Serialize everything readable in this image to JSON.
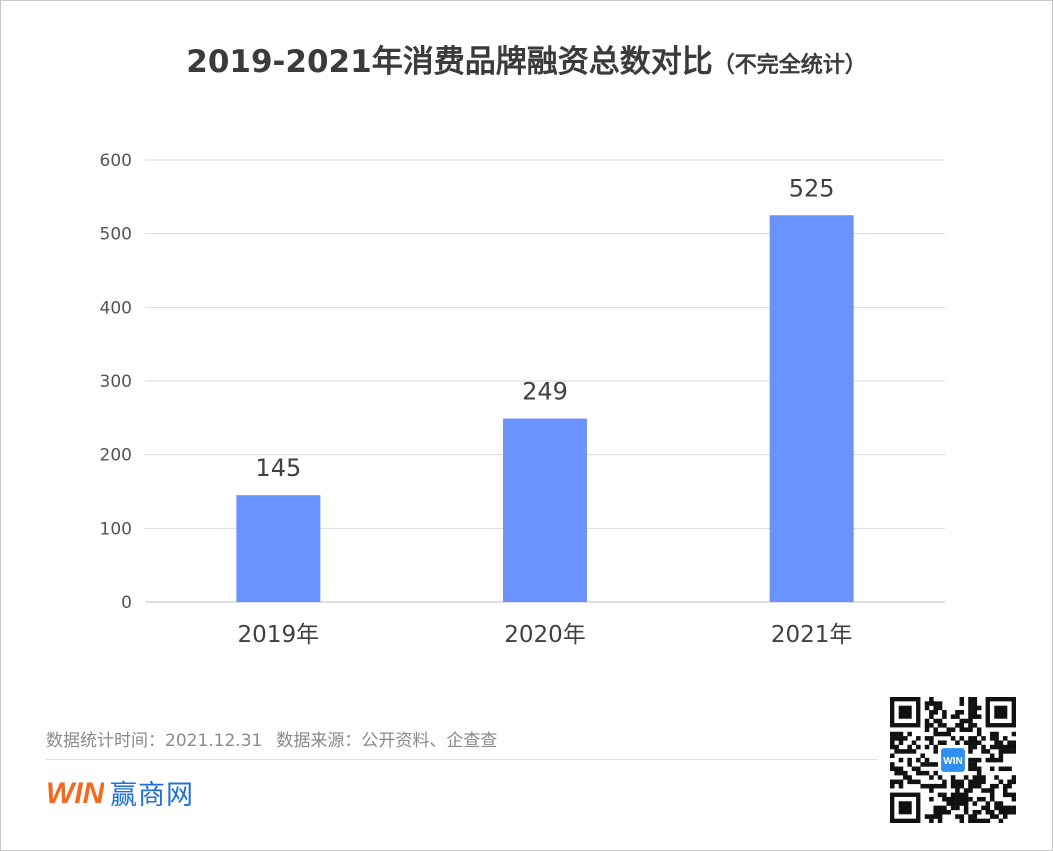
{
  "title": {
    "main": "2019-2021年消费品牌融资总数对比",
    "sub": "（不完全统计）"
  },
  "chart_data": {
    "type": "bar",
    "categories": [
      "2019年",
      "2020年",
      "2021年"
    ],
    "values": [
      145,
      249,
      525
    ],
    "ylim": [
      0,
      600
    ],
    "yticks": [
      0,
      100,
      200,
      300,
      400,
      500,
      600
    ],
    "grid": true,
    "bar_color": "#6b93fe",
    "data_labels": true
  },
  "footer": {
    "time_label": "数据统计时间：2021.12.31",
    "source_label": "数据来源：公开资料、企查查",
    "brand_name": "赢商网",
    "brand_logo_text": "WIN",
    "qr_badge_text": "WIN"
  },
  "colors": {
    "brand_blue": "#1f6fd8",
    "brand_orange": "#f26a21",
    "grid": "#d9d9d9",
    "axis": "#bfbfbf"
  }
}
